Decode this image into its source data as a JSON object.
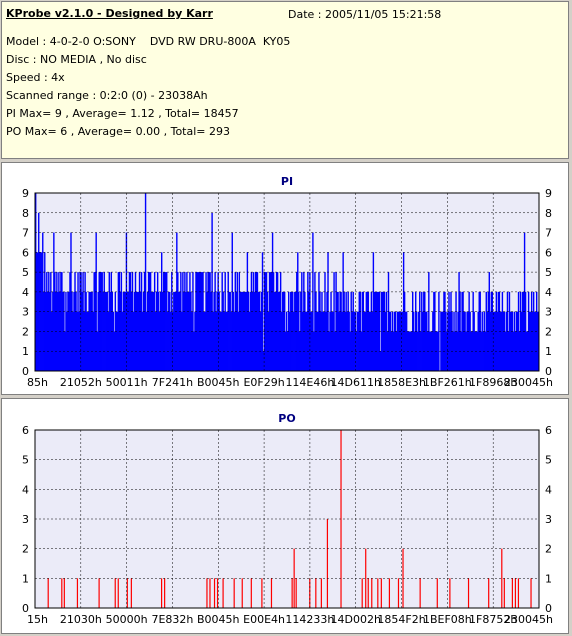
{
  "header": {
    "title": "KProbe v2.1.0 - Designed by Karr",
    "date": "Date : 2005/11/05 15:21:58",
    "lines": [
      "Model : 4-0-2-0 O:SONY    DVD RW DRU-800A  KY05",
      "Disc : NO MEDIA , No disc",
      "Speed : 4x",
      "Scanned range : 0:2:0 (0) - 23038Ah",
      "PI Max= 9 , Average= 1.12 , Total= 18457",
      "PO Max= 6 , Average= 0.00 , Total= 293"
    ]
  },
  "colors": {
    "pi": "#0000ff",
    "po": "#ff0000",
    "plot_bg": "#ebebf8",
    "grid": "#000000"
  },
  "chart_data": [
    {
      "type": "bar",
      "title": "PI",
      "ylim": [
        0,
        9
      ],
      "yticks": [
        "0",
        "1",
        "2",
        "3",
        "4",
        "5",
        "6",
        "7",
        "8",
        "9"
      ],
      "xticks": [
        "85h",
        "21052h",
        "50011h",
        "7F241h",
        "B0045h",
        "E0F29h",
        "114E46h",
        "14D611h",
        "1858E3h",
        "1BF261h",
        "1F8968h",
        "230045h"
      ],
      "x_range": [
        0,
        1
      ],
      "grid": true,
      "bins": 500,
      "base_profile": [
        {
          "x": 0.0,
          "v": 6
        },
        {
          "x": 0.03,
          "v": 4
        },
        {
          "x": 0.15,
          "v": 4
        },
        {
          "x": 0.5,
          "v": 4
        },
        {
          "x": 0.62,
          "v": 3
        },
        {
          "x": 0.85,
          "v": 3
        },
        {
          "x": 1.0,
          "v": 3
        }
      ],
      "peaks": [
        {
          "x": 0.0,
          "v": 9
        },
        {
          "x": 0.006,
          "v": 8
        },
        {
          "x": 0.015,
          "v": 7
        },
        {
          "x": 0.035,
          "v": 7
        },
        {
          "x": 0.07,
          "v": 7
        },
        {
          "x": 0.12,
          "v": 7
        },
        {
          "x": 0.18,
          "v": 7
        },
        {
          "x": 0.218,
          "v": 9
        },
        {
          "x": 0.25,
          "v": 6
        },
        {
          "x": 0.28,
          "v": 7
        },
        {
          "x": 0.35,
          "v": 8
        },
        {
          "x": 0.355,
          "v": 9
        },
        {
          "x": 0.39,
          "v": 7
        },
        {
          "x": 0.42,
          "v": 6
        },
        {
          "x": 0.45,
          "v": 6
        },
        {
          "x": 0.47,
          "v": 7
        },
        {
          "x": 0.52,
          "v": 6
        },
        {
          "x": 0.55,
          "v": 7
        },
        {
          "x": 0.58,
          "v": 6
        },
        {
          "x": 0.61,
          "v": 6
        },
        {
          "x": 0.627,
          "v": 8
        },
        {
          "x": 0.67,
          "v": 6
        },
        {
          "x": 0.7,
          "v": 5
        },
        {
          "x": 0.73,
          "v": 6
        },
        {
          "x": 0.78,
          "v": 5
        },
        {
          "x": 0.84,
          "v": 5
        },
        {
          "x": 0.9,
          "v": 5
        },
        {
          "x": 0.97,
          "v": 7
        }
      ]
    },
    {
      "type": "bar",
      "title": "PO",
      "ylim": [
        0,
        6
      ],
      "yticks": [
        "0",
        "1",
        "2",
        "3",
        "4",
        "5",
        "6"
      ],
      "xticks": [
        "15h",
        "21030h",
        "50000h",
        "7E832h",
        "B0045h",
        "E00E4h",
        "114233h",
        "14D002h",
        "1854F2h",
        "1BEF08h",
        "1F8752h",
        "230045h"
      ],
      "x_range": [
        0,
        1
      ],
      "grid": true,
      "points": [
        {
          "x": 0.025,
          "v": 1
        },
        {
          "x": 0.052,
          "v": 1
        },
        {
          "x": 0.057,
          "v": 1
        },
        {
          "x": 0.083,
          "v": 1
        },
        {
          "x": 0.126,
          "v": 1
        },
        {
          "x": 0.158,
          "v": 1
        },
        {
          "x": 0.164,
          "v": 1
        },
        {
          "x": 0.182,
          "v": 1
        },
        {
          "x": 0.19,
          "v": 1
        },
        {
          "x": 0.25,
          "v": 1
        },
        {
          "x": 0.256,
          "v": 1
        },
        {
          "x": 0.34,
          "v": 1
        },
        {
          "x": 0.346,
          "v": 1
        },
        {
          "x": 0.355,
          "v": 1
        },
        {
          "x": 0.361,
          "v": 1
        },
        {
          "x": 0.372,
          "v": 1
        },
        {
          "x": 0.394,
          "v": 1
        },
        {
          "x": 0.41,
          "v": 1
        },
        {
          "x": 0.428,
          "v": 1
        },
        {
          "x": 0.449,
          "v": 1
        },
        {
          "x": 0.468,
          "v": 1
        },
        {
          "x": 0.509,
          "v": 1
        },
        {
          "x": 0.513,
          "v": 2
        },
        {
          "x": 0.517,
          "v": 1
        },
        {
          "x": 0.544,
          "v": 1
        },
        {
          "x": 0.556,
          "v": 1
        },
        {
          "x": 0.567,
          "v": 1
        },
        {
          "x": 0.579,
          "v": 3
        },
        {
          "x": 0.606,
          "v": 6
        },
        {
          "x": 0.648,
          "v": 1
        },
        {
          "x": 0.655,
          "v": 2
        },
        {
          "x": 0.66,
          "v": 1
        },
        {
          "x": 0.667,
          "v": 1
        },
        {
          "x": 0.679,
          "v": 1
        },
        {
          "x": 0.686,
          "v": 1
        },
        {
          "x": 0.702,
          "v": 1
        },
        {
          "x": 0.72,
          "v": 1
        },
        {
          "x": 0.729,
          "v": 2
        },
        {
          "x": 0.763,
          "v": 1
        },
        {
          "x": 0.797,
          "v": 1
        },
        {
          "x": 0.822,
          "v": 1
        },
        {
          "x": 0.859,
          "v": 1
        },
        {
          "x": 0.899,
          "v": 1
        },
        {
          "x": 0.925,
          "v": 2
        },
        {
          "x": 0.93,
          "v": 1
        },
        {
          "x": 0.946,
          "v": 1
        },
        {
          "x": 0.952,
          "v": 1
        },
        {
          "x": 0.958,
          "v": 1
        },
        {
          "x": 0.983,
          "v": 1
        }
      ]
    }
  ]
}
